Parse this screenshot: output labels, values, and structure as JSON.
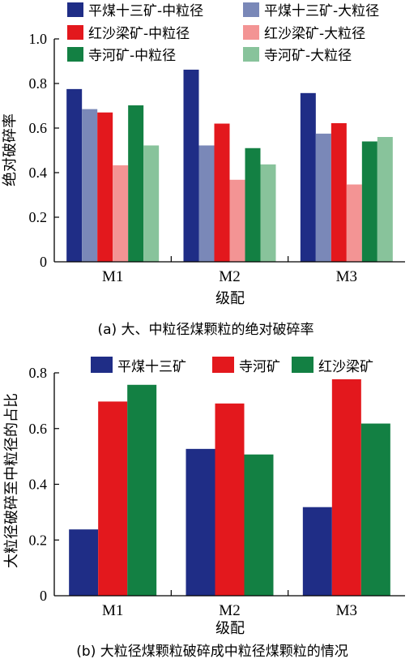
{
  "chart_data": [
    {
      "type": "bar",
      "categories": [
        "M1",
        "M2",
        "M3"
      ],
      "xlabel": "级配",
      "ylabel": "绝对破碎率",
      "ylim": [
        0,
        1.0
      ],
      "yticks": [
        "0",
        "0.2",
        "0.4",
        "0.6",
        "0.8",
        "1.0"
      ],
      "caption": "(a)  大、中粒径煤颗粒的绝对破碎率",
      "legend_position": "top",
      "series": [
        {
          "name": "平煤十三矿-中粒径",
          "color": "#1f2d86",
          "values": [
            0.775,
            0.862,
            0.757
          ]
        },
        {
          "name": "平煤十三矿-大粒径",
          "color": "#7a88b8",
          "values": [
            0.685,
            0.522,
            0.575
          ]
        },
        {
          "name": "红沙梁矿-中粒径",
          "color": "#e3181d",
          "values": [
            0.67,
            0.62,
            0.622
          ]
        },
        {
          "name": "红沙梁矿-大粒径",
          "color": "#f39494",
          "values": [
            0.433,
            0.368,
            0.347
          ]
        },
        {
          "name": "寺河矿-中粒径",
          "color": "#138043",
          "values": [
            0.702,
            0.51,
            0.54
          ]
        },
        {
          "name": "寺河矿-大粒径",
          "color": "#88c39b",
          "values": [
            0.522,
            0.437,
            0.56
          ]
        }
      ]
    },
    {
      "type": "bar",
      "categories": [
        "M1",
        "M2",
        "M3"
      ],
      "xlabel": "级配",
      "ylabel": "大粒径破碎至中粒径的占比",
      "ylim": [
        0,
        0.8
      ],
      "yticks": [
        "0",
        "0.2",
        "0.4",
        "0.6",
        "0.8"
      ],
      "caption": "(b)  大粒径煤颗粒破碎成中粒径煤颗粒的情况",
      "legend_position": "top",
      "series": [
        {
          "name": "平煤十三矿",
          "color": "#1f2d86",
          "values": [
            0.238,
            0.527,
            0.318
          ]
        },
        {
          "name": "寺河矿",
          "color": "#e3181d",
          "values": [
            0.697,
            0.69,
            0.777
          ]
        },
        {
          "name": "红沙梁矿",
          "color": "#138043",
          "values": [
            0.757,
            0.507,
            0.618
          ]
        }
      ]
    }
  ]
}
